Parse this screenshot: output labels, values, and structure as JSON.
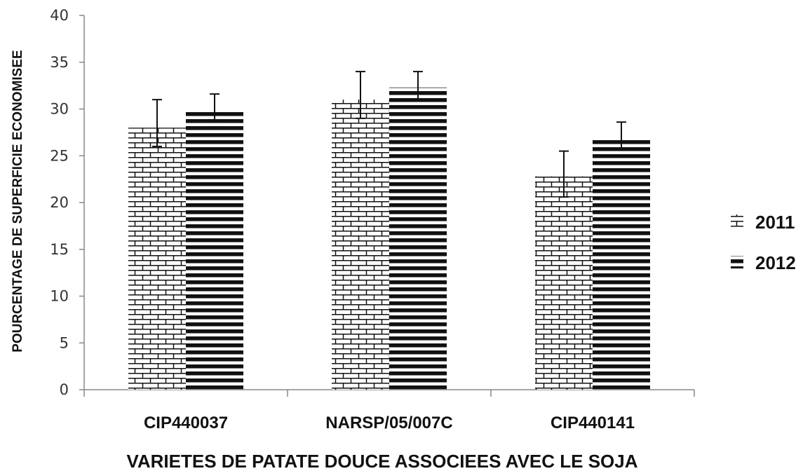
{
  "chart_data": {
    "type": "bar",
    "title": "",
    "xlabel": "VARIETES DE PATATE DOUCE ASSOCIEES AVEC LE SOJA",
    "ylabel": "POURCENTAGE DE SUPERFICIE ECONOMISEE",
    "categories": [
      "CIP440037",
      "NARSP/05/007C",
      "CIP440141"
    ],
    "ylim": [
      0,
      40
    ],
    "yticks": [
      0,
      5,
      10,
      15,
      20,
      25,
      30,
      35,
      40
    ],
    "grid": false,
    "legend": "right",
    "series": [
      {
        "name": "2011",
        "pattern": "brick",
        "values": [
          28,
          31,
          22.8
        ],
        "error_low": [
          26,
          29,
          20.6
        ],
        "error_high": [
          31,
          34,
          25.5
        ]
      },
      {
        "name": "2012",
        "pattern": "horizontal-lines",
        "values": [
          30,
          32.3,
          27
        ],
        "error_low": [
          28.6,
          31,
          25.6
        ],
        "error_high": [
          31.6,
          34,
          28.6
        ]
      }
    ]
  }
}
